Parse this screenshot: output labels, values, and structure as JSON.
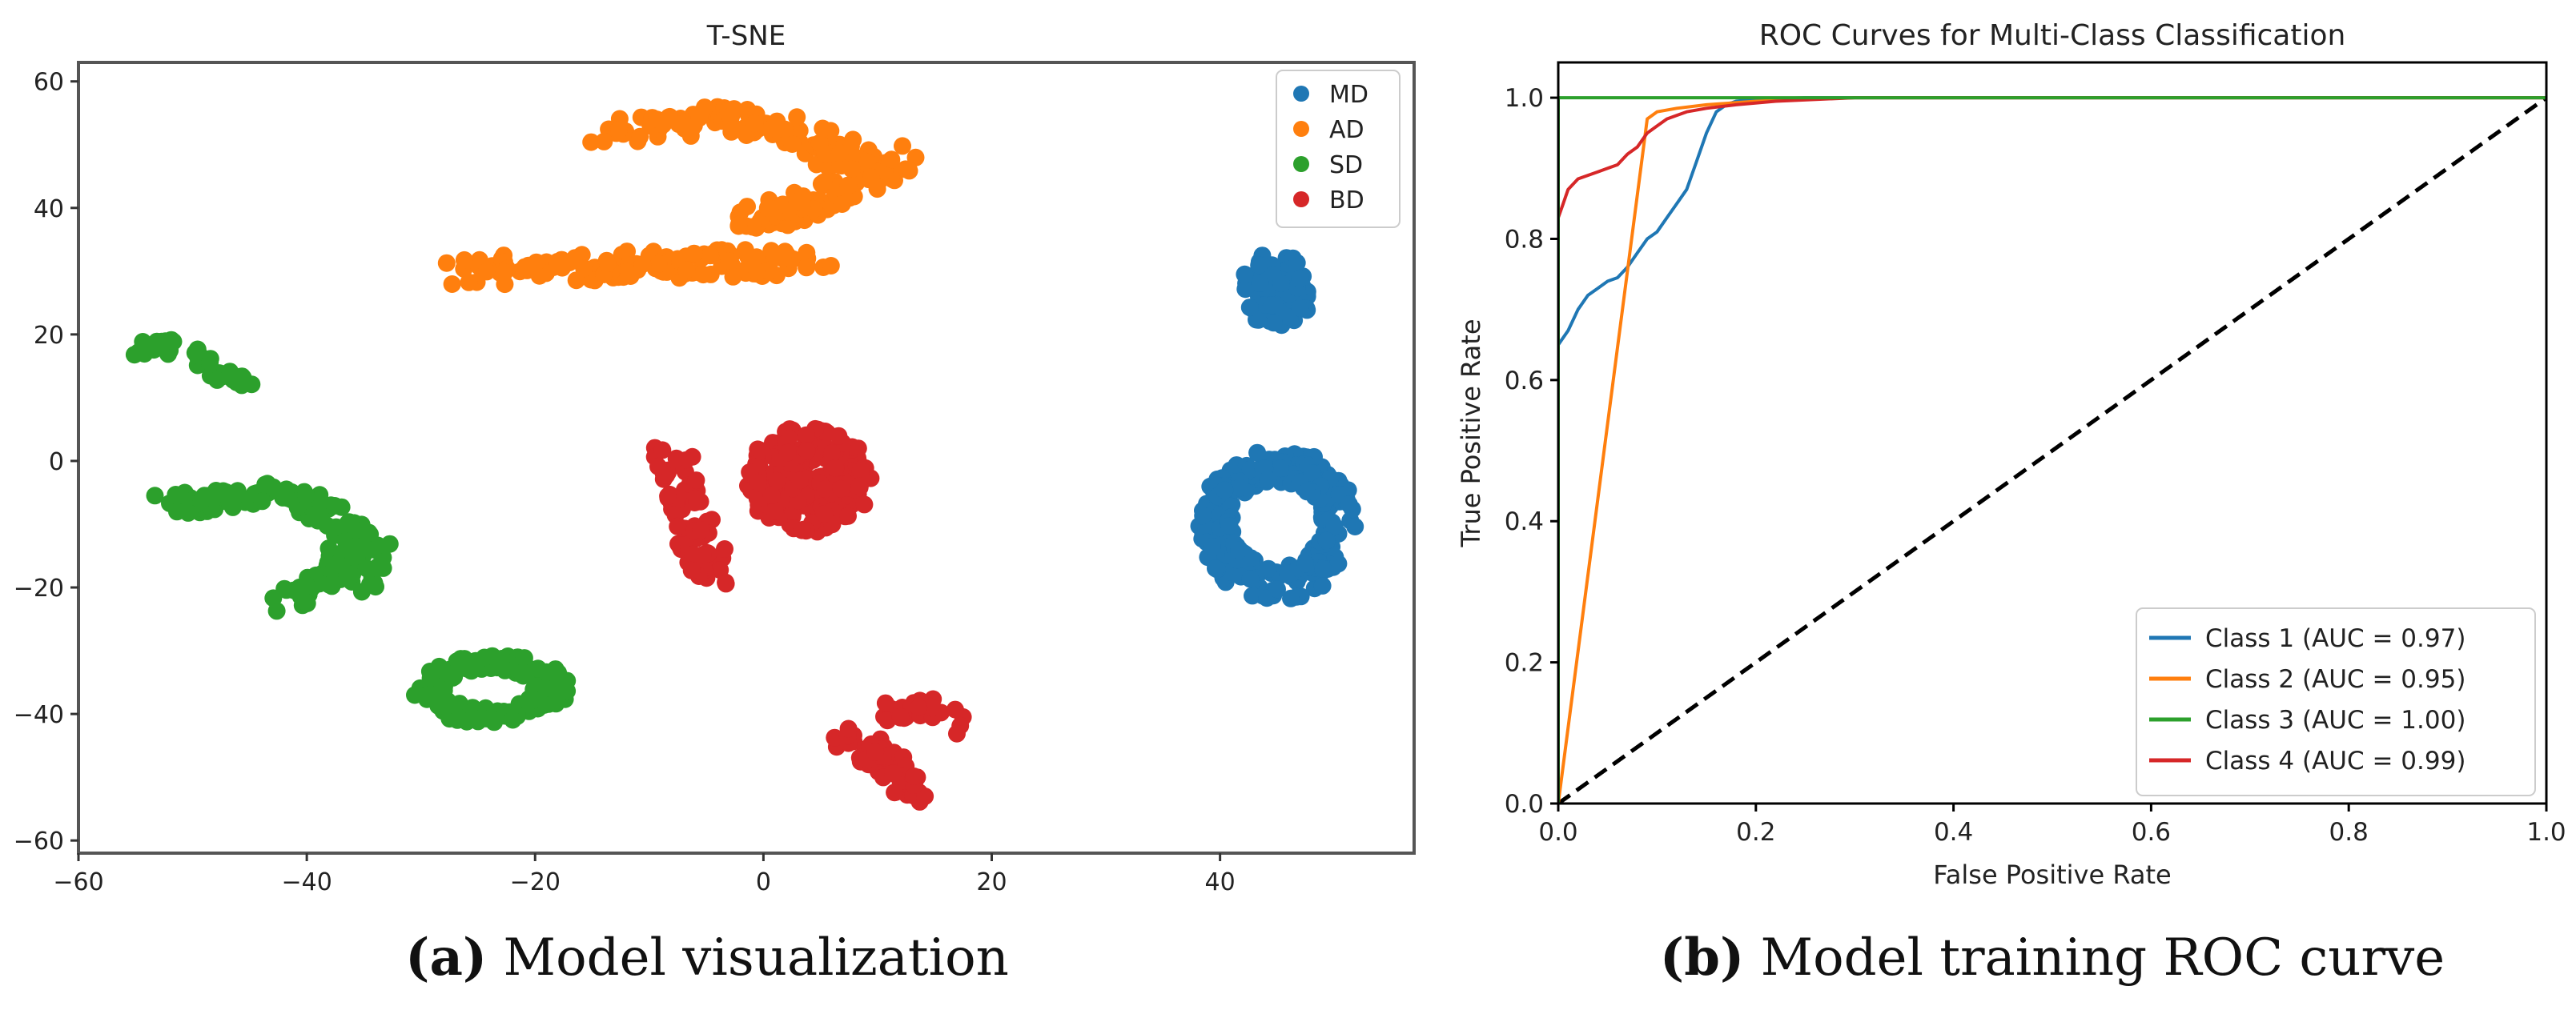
{
  "captions": [
    {
      "label": "(a)",
      "text": " Model visualization"
    },
    {
      "label": "(b)",
      "text": " Model training ROC curve"
    }
  ],
  "chart_data": [
    {
      "type": "scatter",
      "title": "T-SNE",
      "xlabel": "",
      "ylabel": "",
      "xlim": [
        -60,
        57
      ],
      "ylim": [
        -62,
        63
      ],
      "x_ticks": [
        -60,
        -40,
        -20,
        0,
        20,
        40
      ],
      "x_tick_labels": [
        "−60",
        "−40",
        "−20",
        "0",
        "20",
        "40"
      ],
      "y_ticks": [
        -60,
        -40,
        -20,
        0,
        20,
        40,
        60
      ],
      "y_tick_labels": [
        "−60",
        "−40",
        "−20",
        "0",
        "20",
        "40",
        "60"
      ],
      "legend_position": "top-right",
      "series": [
        {
          "name": "MD",
          "color": "#1f77b4",
          "clusters": [
            {
              "shape": "blob",
              "cx": 45,
              "cy": 27,
              "rx": 3.2,
              "ry": 6,
              "n": 70,
              "seed": 11
            },
            {
              "shape": "ring",
              "cx": 45,
              "cy": -10,
              "rx": 7,
              "ry": 12,
              "n": 260,
              "seed": 12
            }
          ]
        },
        {
          "name": "AD",
          "color": "#ff7f0e",
          "clusters": [
            {
              "shape": "band",
              "points": [
                [
                  -27,
                  30
                ],
                [
                  -10,
                  31
                ],
                [
                  5,
                  31.5
                ]
              ],
              "w": 2.2,
              "n": 150,
              "seed": 21
            },
            {
              "shape": "band",
              "points": [
                [
                  -13,
                  52
                ],
                [
                  -4,
                  54
                ],
                [
                  3,
                  52
                ],
                [
                  9,
                  45
                ],
                [
                  12,
                  48
                ]
              ],
              "w": 2.2,
              "n": 140,
              "seed": 22
            },
            {
              "shape": "band",
              "points": [
                [
                  -1,
                  38
                ],
                [
                  5,
                  41
                ],
                [
                  11,
                  46
                ]
              ],
              "w": 2.0,
              "n": 80,
              "seed": 23
            }
          ]
        },
        {
          "name": "SD",
          "color": "#2ca02c",
          "clusters": [
            {
              "shape": "band",
              "points": [
                [
                  -55,
                  17.5
                ],
                [
                  -52,
                  18.5
                ],
                [
                  -48,
                  15
                ],
                [
                  -45.5,
                  12.5
                ]
              ],
              "w": 1.2,
              "n": 45,
              "seed": 31
            },
            {
              "shape": "band",
              "points": [
                [
                  -52,
                  -7
                ],
                [
                  -47,
                  -6
                ],
                [
                  -42,
                  -5
                ],
                [
                  -38,
                  -8
                ],
                [
                  -34,
                  -14
                ],
                [
                  -36,
                  -21
                ]
              ],
              "w": 1.5,
              "n": 120,
              "seed": 32
            },
            {
              "shape": "band",
              "points": [
                [
                  -42,
                  -23
                ],
                [
                  -38,
                  -18
                ],
                [
                  -35,
                  -12
                ]
              ],
              "w": 1.5,
              "n": 60,
              "seed": 33
            },
            {
              "shape": "ring",
              "cx": -24,
              "cy": -36,
              "rx": 7,
              "ry": 5.5,
              "n": 150,
              "seed": 34
            }
          ]
        },
        {
          "name": "BD",
          "color": "#d62728",
          "clusters": [
            {
              "shape": "band",
              "points": [
                [
                  -8,
                  2
                ],
                [
                  -7,
                  -4
                ],
                [
                  -6,
                  -12
                ],
                [
                  -4,
                  -18
                ]
              ],
              "w": 1.8,
              "n": 70,
              "seed": 41
            },
            {
              "shape": "blob",
              "cx": 4,
              "cy": -3,
              "rx": 5.5,
              "ry": 8.5,
              "n": 220,
              "seed": 42
            },
            {
              "shape": "band",
              "points": [
                [
                  8,
                  -44
                ],
                [
                  11,
                  -48
                ],
                [
                  13,
                  -54
                ]
              ],
              "w": 1.8,
              "n": 60,
              "seed": 43
            },
            {
              "shape": "band",
              "points": [
                [
                  11,
                  -40
                ],
                [
                  14,
                  -39
                ],
                [
                  17,
                  -42
                ]
              ],
              "w": 1.5,
              "n": 30,
              "seed": 44
            }
          ]
        }
      ]
    },
    {
      "type": "line",
      "title": "ROC Curves for Multi-Class Classification",
      "xlabel": "False Positive Rate",
      "ylabel": "True Positive Rate",
      "xlim": [
        0,
        1
      ],
      "ylim": [
        0,
        1.05
      ],
      "x_ticks": [
        0,
        0.2,
        0.4,
        0.6,
        0.8,
        1.0
      ],
      "x_tick_labels": [
        "0.0",
        "0.2",
        "0.4",
        "0.6",
        "0.8",
        "1.0"
      ],
      "y_ticks": [
        0,
        0.2,
        0.4,
        0.6,
        0.8,
        1.0
      ],
      "y_tick_labels": [
        "0.0",
        "0.2",
        "0.4",
        "0.6",
        "0.8",
        "1.0"
      ],
      "legend_position": "bottom-right",
      "diagonal": {
        "color": "#000000",
        "style": "dashed"
      },
      "series": [
        {
          "name": "Class 1 (AUC = 0.97)",
          "color": "#1f77b4",
          "x": [
            0,
            0,
            0.01,
            0.02,
            0.03,
            0.04,
            0.05,
            0.06,
            0.07,
            0.08,
            0.09,
            0.1,
            0.11,
            0.12,
            0.13,
            0.14,
            0.15,
            0.16,
            0.17,
            0.18,
            0.2,
            0.25,
            0.3,
            1.0
          ],
          "y": [
            0,
            0.65,
            0.67,
            0.7,
            0.72,
            0.73,
            0.74,
            0.745,
            0.76,
            0.78,
            0.8,
            0.81,
            0.83,
            0.85,
            0.87,
            0.91,
            0.95,
            0.98,
            0.99,
            0.995,
            0.998,
            1.0,
            1.0,
            1.0
          ]
        },
        {
          "name": "Class 2 (AUC = 0.95)",
          "color": "#ff7f0e",
          "x": [
            0,
            0.09,
            0.1,
            0.12,
            0.15,
            0.2,
            0.25,
            0.3,
            1.0
          ],
          "y": [
            0,
            0.97,
            0.98,
            0.985,
            0.99,
            0.995,
            0.998,
            1.0,
            1.0
          ]
        },
        {
          "name": "Class 3 (AUC = 1.00)",
          "color": "#2ca02c",
          "x": [
            0,
            0,
            1.0
          ],
          "y": [
            0,
            1.0,
            1.0
          ]
        },
        {
          "name": "Class 4 (AUC = 0.99)",
          "color": "#d62728",
          "x": [
            0,
            0,
            0.005,
            0.01,
            0.02,
            0.03,
            0.04,
            0.05,
            0.06,
            0.07,
            0.08,
            0.09,
            0.1,
            0.11,
            0.12,
            0.13,
            0.15,
            0.18,
            0.22,
            0.3,
            1.0
          ],
          "y": [
            0,
            0.83,
            0.85,
            0.87,
            0.885,
            0.89,
            0.895,
            0.9,
            0.905,
            0.92,
            0.93,
            0.95,
            0.96,
            0.97,
            0.975,
            0.98,
            0.985,
            0.99,
            0.995,
            1.0,
            1.0
          ]
        }
      ]
    }
  ]
}
